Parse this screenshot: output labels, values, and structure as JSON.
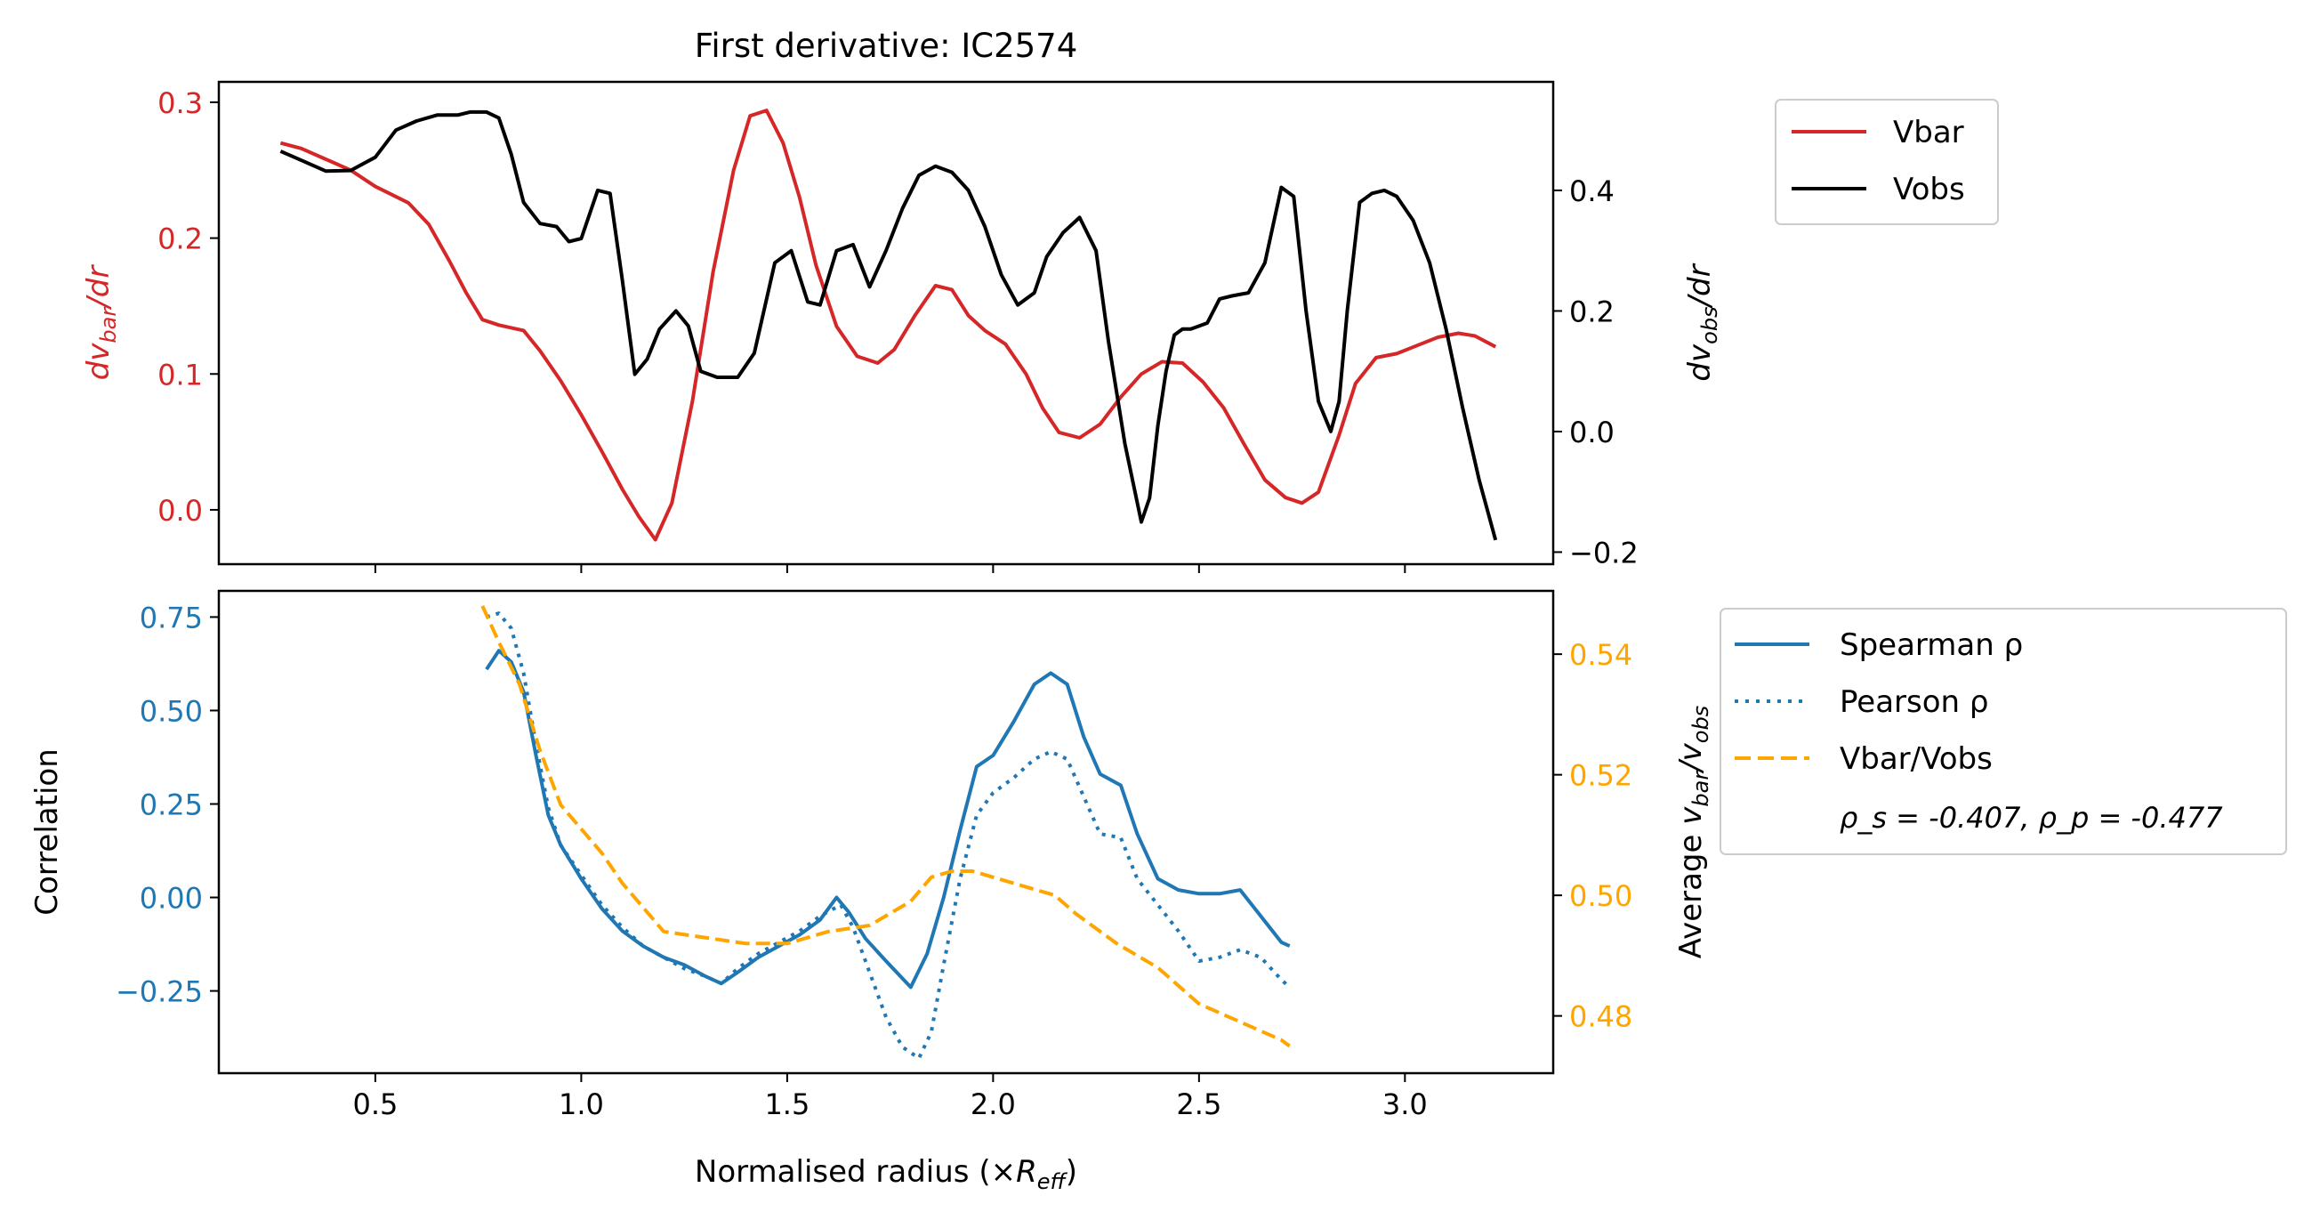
{
  "chart_data": [
    {
      "type": "line",
      "title": "First derivative: IC2574",
      "xlim": [
        0.12,
        3.36
      ],
      "ylabel_left": "dv_bar/dr",
      "ylabel_right": "dv_obs/dr",
      "ylim_left": [
        -0.04,
        0.315
      ],
      "ylim_right": [
        -0.22,
        0.58
      ],
      "yticks_left": [
        0.0,
        0.1,
        0.2,
        0.3
      ],
      "yticks_right": [
        -0.2,
        0.0,
        0.2,
        0.4
      ],
      "colors": {
        "vbar": "#d62728",
        "vobs": "#000000"
      },
      "legend": {
        "placement": "outside-right",
        "entries": [
          "Vbar",
          "Vobs"
        ]
      },
      "series": [
        {
          "name": "Vbar",
          "axis": "left",
          "color": "#d62728",
          "style": "solid",
          "x": [
            0.27,
            0.32,
            0.38,
            0.44,
            0.5,
            0.54,
            0.58,
            0.63,
            0.68,
            0.72,
            0.76,
            0.8,
            0.86,
            0.9,
            0.95,
            1.0,
            1.05,
            1.1,
            1.14,
            1.18,
            1.22,
            1.27,
            1.32,
            1.37,
            1.41,
            1.45,
            1.49,
            1.53,
            1.57,
            1.62,
            1.67,
            1.72,
            1.76,
            1.81,
            1.86,
            1.9,
            1.94,
            1.98,
            2.03,
            2.08,
            2.12,
            2.16,
            2.21,
            2.26,
            2.31,
            2.36,
            2.41,
            2.46,
            2.51,
            2.56,
            2.61,
            2.66,
            2.71,
            2.75,
            2.79,
            2.84,
            2.88,
            2.93,
            2.98,
            3.03,
            3.08,
            3.13,
            3.17,
            3.22
          ],
          "values": [
            0.27,
            0.266,
            0.258,
            0.25,
            0.238,
            0.232,
            0.226,
            0.21,
            0.183,
            0.16,
            0.14,
            0.136,
            0.132,
            0.117,
            0.095,
            0.07,
            0.043,
            0.015,
            -0.005,
            -0.022,
            0.005,
            0.08,
            0.175,
            0.25,
            0.29,
            0.294,
            0.27,
            0.23,
            0.18,
            0.135,
            0.113,
            0.108,
            0.118,
            0.143,
            0.165,
            0.162,
            0.143,
            0.132,
            0.122,
            0.1,
            0.075,
            0.057,
            0.053,
            0.063,
            0.083,
            0.1,
            0.109,
            0.108,
            0.094,
            0.075,
            0.048,
            0.022,
            0.009,
            0.005,
            0.013,
            0.055,
            0.093,
            0.112,
            0.115,
            0.121,
            0.127,
            0.13,
            0.128,
            0.12
          ]
        },
        {
          "name": "Vobs",
          "axis": "right",
          "color": "#000000",
          "style": "solid",
          "x": [
            0.27,
            0.32,
            0.38,
            0.44,
            0.5,
            0.55,
            0.6,
            0.65,
            0.7,
            0.73,
            0.77,
            0.8,
            0.83,
            0.86,
            0.9,
            0.94,
            0.97,
            1.0,
            1.04,
            1.07,
            1.1,
            1.13,
            1.16,
            1.19,
            1.23,
            1.26,
            1.29,
            1.33,
            1.38,
            1.42,
            1.47,
            1.51,
            1.55,
            1.58,
            1.62,
            1.66,
            1.7,
            1.74,
            1.78,
            1.82,
            1.86,
            1.9,
            1.94,
            1.98,
            2.02,
            2.06,
            2.1,
            2.13,
            2.17,
            2.21,
            2.25,
            2.28,
            2.32,
            2.36,
            2.38,
            2.4,
            2.42,
            2.44,
            2.46,
            2.48,
            2.5,
            2.52,
            2.55,
            2.58,
            2.62,
            2.66,
            2.7,
            2.73,
            2.76,
            2.79,
            2.82,
            2.84,
            2.86,
            2.89,
            2.92,
            2.95,
            2.98,
            3.02,
            3.06,
            3.1,
            3.14,
            3.18,
            3.22
          ],
          "values": [
            0.465,
            0.45,
            0.432,
            0.433,
            0.455,
            0.5,
            0.515,
            0.525,
            0.525,
            0.53,
            0.53,
            0.52,
            0.46,
            0.38,
            0.345,
            0.34,
            0.315,
            0.32,
            0.4,
            0.395,
            0.25,
            0.095,
            0.12,
            0.17,
            0.2,
            0.175,
            0.1,
            0.09,
            0.09,
            0.13,
            0.28,
            0.3,
            0.215,
            0.21,
            0.3,
            0.31,
            0.24,
            0.3,
            0.37,
            0.425,
            0.44,
            0.43,
            0.4,
            0.34,
            0.26,
            0.21,
            0.23,
            0.29,
            0.33,
            0.355,
            0.3,
            0.15,
            -0.02,
            -0.15,
            -0.11,
            0.01,
            0.1,
            0.16,
            0.17,
            0.17,
            0.175,
            0.18,
            0.22,
            0.225,
            0.23,
            0.28,
            0.405,
            0.39,
            0.2,
            0.05,
            0.0,
            0.05,
            0.2,
            0.38,
            0.395,
            0.4,
            0.39,
            0.35,
            0.28,
            0.17,
            0.04,
            -0.08,
            -0.18
          ]
        }
      ]
    },
    {
      "type": "line",
      "xlabel": "Normalised radius (×R_eff)",
      "xlim": [
        0.12,
        3.36
      ],
      "xticks": [
        0.5,
        1.0,
        1.5,
        2.0,
        2.5,
        3.0
      ],
      "ylabel_left": "Correlation",
      "ylabel_right": "Average v_bar/v_obs",
      "ylim_left": [
        -0.47,
        0.82
      ],
      "ylim_right": [
        0.4705,
        0.5505
      ],
      "yticks_left": [
        -0.25,
        0.0,
        0.25,
        0.5,
        0.75
      ],
      "yticks_right": [
        0.48,
        0.5,
        0.52,
        0.54
      ],
      "colors": {
        "correlation": "#1f77b4",
        "ratio": "#ffa500"
      },
      "legend": {
        "placement": "outside-right",
        "entries": [
          "Spearman ρ",
          "Pearson ρ",
          "Vbar/Vobs"
        ],
        "annotation": "ρ_s = -0.407, ρ_p = -0.477"
      },
      "series": [
        {
          "name": "Spearman ρ",
          "axis": "left",
          "color": "#1f77b4",
          "style": "solid",
          "x": [
            0.77,
            0.8,
            0.83,
            0.86,
            0.89,
            0.92,
            0.95,
            1.0,
            1.05,
            1.1,
            1.15,
            1.2,
            1.25,
            1.3,
            1.34,
            1.38,
            1.43,
            1.48,
            1.53,
            1.58,
            1.62,
            1.65,
            1.69,
            1.74,
            1.8,
            1.84,
            1.88,
            1.92,
            1.96,
            2.0,
            2.05,
            2.1,
            2.14,
            2.18,
            2.22,
            2.26,
            2.31,
            2.35,
            2.4,
            2.45,
            2.5,
            2.55,
            2.6,
            2.65,
            2.7,
            2.72
          ],
          "values": [
            0.61,
            0.66,
            0.63,
            0.55,
            0.38,
            0.22,
            0.14,
            0.05,
            -0.03,
            -0.09,
            -0.13,
            -0.16,
            -0.18,
            -0.21,
            -0.23,
            -0.2,
            -0.16,
            -0.13,
            -0.1,
            -0.06,
            0.0,
            -0.04,
            -0.11,
            -0.17,
            -0.24,
            -0.15,
            0.0,
            0.18,
            0.35,
            0.38,
            0.47,
            0.57,
            0.6,
            0.57,
            0.43,
            0.33,
            0.3,
            0.17,
            0.05,
            0.02,
            0.01,
            0.01,
            0.02,
            -0.05,
            -0.12,
            -0.13
          ]
        },
        {
          "name": "Pearson ρ",
          "axis": "left",
          "color": "#1f77b4",
          "style": "dotted",
          "x": [
            0.77,
            0.8,
            0.83,
            0.86,
            0.89,
            0.92,
            0.95,
            1.0,
            1.05,
            1.1,
            1.15,
            1.2,
            1.25,
            1.3,
            1.34,
            1.38,
            1.43,
            1.48,
            1.53,
            1.58,
            1.63,
            1.66,
            1.7,
            1.74,
            1.78,
            1.82,
            1.85,
            1.88,
            1.92,
            1.96,
            2.0,
            2.05,
            2.1,
            2.14,
            2.18,
            2.22,
            2.26,
            2.31,
            2.35,
            2.4,
            2.45,
            2.5,
            2.55,
            2.6,
            2.65,
            2.7,
            2.72
          ],
          "values": [
            0.75,
            0.76,
            0.72,
            0.6,
            0.41,
            0.24,
            0.14,
            0.06,
            -0.02,
            -0.08,
            -0.13,
            -0.16,
            -0.19,
            -0.21,
            -0.23,
            -0.19,
            -0.15,
            -0.12,
            -0.09,
            -0.05,
            -0.02,
            -0.08,
            -0.2,
            -0.32,
            -0.4,
            -0.43,
            -0.36,
            -0.18,
            0.05,
            0.22,
            0.28,
            0.32,
            0.37,
            0.39,
            0.37,
            0.27,
            0.17,
            0.16,
            0.05,
            -0.02,
            -0.09,
            -0.17,
            -0.16,
            -0.14,
            -0.16,
            -0.22,
            -0.24
          ]
        },
        {
          "name": "Vbar/Vobs",
          "axis": "right",
          "color": "#ffa500",
          "style": "dashed",
          "x": [
            0.76,
            0.8,
            0.85,
            0.9,
            0.95,
            1.0,
            1.05,
            1.1,
            1.15,
            1.2,
            1.3,
            1.4,
            1.5,
            1.6,
            1.7,
            1.8,
            1.85,
            1.9,
            1.95,
            2.0,
            2.05,
            2.1,
            2.15,
            2.2,
            2.3,
            2.4,
            2.5,
            2.6,
            2.7,
            2.72
          ],
          "values": [
            0.548,
            0.542,
            0.535,
            0.524,
            0.515,
            0.511,
            0.507,
            0.502,
            0.498,
            0.494,
            0.493,
            0.492,
            0.492,
            0.494,
            0.495,
            0.499,
            0.503,
            0.504,
            0.504,
            0.503,
            0.502,
            0.501,
            0.5,
            0.497,
            0.492,
            0.488,
            0.482,
            0.479,
            0.476,
            0.475
          ]
        }
      ]
    }
  ]
}
